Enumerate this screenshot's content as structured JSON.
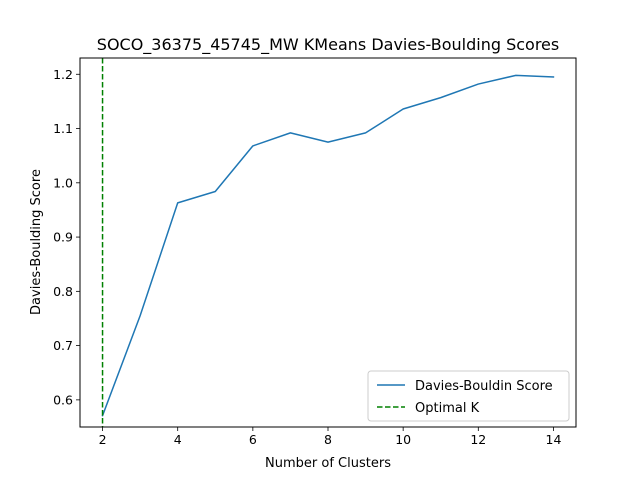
{
  "chart_data": {
    "type": "line",
    "title": "SOCO_36375_45745_MW KMeans Davies-Boulding Scores",
    "xlabel": "Number of Clusters",
    "ylabel": "Davies-Boulding Score",
    "x": [
      2,
      3,
      4,
      5,
      6,
      7,
      8,
      9,
      10,
      11,
      12,
      13,
      14
    ],
    "series": [
      {
        "name": "Davies-Bouldin Score",
        "color": "#1f77b4",
        "values": [
          0.571,
          0.755,
          0.963,
          0.984,
          1.068,
          1.092,
          1.075,
          1.092,
          1.136,
          1.157,
          1.182,
          1.198,
          1.195
        ]
      }
    ],
    "vline": {
      "name": "Optimal K",
      "x": 2,
      "color": "#008000",
      "style": "dashed"
    },
    "xlim": [
      1.4,
      14.6
    ],
    "ylim": [
      0.55,
      1.23
    ],
    "xticks": [
      2,
      4,
      6,
      8,
      10,
      12,
      14
    ],
    "yticks": [
      0.6,
      0.7,
      0.8,
      0.9,
      1.0,
      1.1,
      1.2
    ],
    "ytick_labels": [
      "0.6",
      "0.7",
      "0.8",
      "0.9",
      "1.0",
      "1.1",
      "1.2"
    ],
    "grid": false,
    "legend_position": "lower-right"
  }
}
